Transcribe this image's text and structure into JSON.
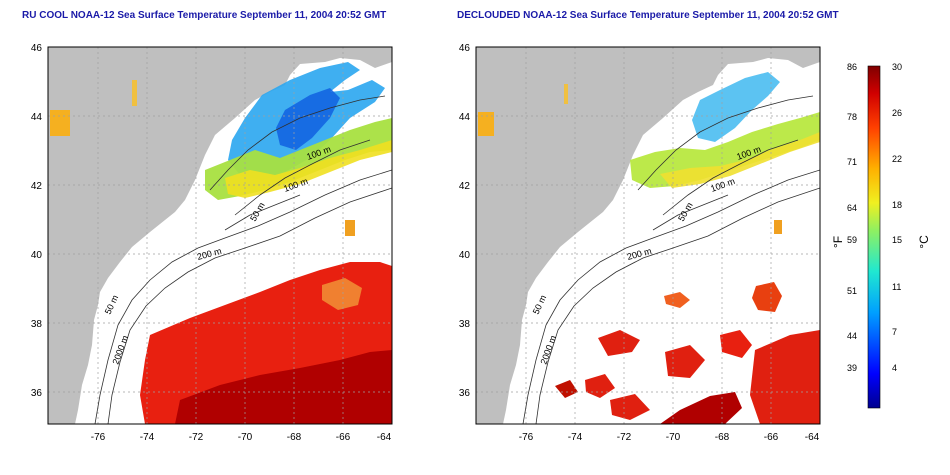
{
  "panels": [
    {
      "title": "RU COOL NOAA-12 Sea Surface Temperature September 11, 2004 20:52 GMT",
      "contour_labels": [
        "100 m",
        "100 m",
        "50 m",
        "200 m",
        "50 m",
        "2000 m"
      ]
    },
    {
      "title": "DECLOUDED NOAA-12 Sea Surface Temperature September 11, 2004 20:52 GMT",
      "contour_labels": [
        "100 m",
        "100 m",
        "50 m",
        "200 m",
        "50 m",
        "2000 m"
      ]
    }
  ],
  "axes": {
    "lon_ticks": [
      "-76",
      "-74",
      "-72",
      "-70",
      "-68",
      "-66",
      "-64"
    ],
    "lat_ticks": [
      "46",
      "44",
      "42",
      "40",
      "38",
      "36"
    ],
    "lon_range": [
      -77.0,
      -63.0
    ],
    "lat_range": [
      35.0,
      46.0
    ]
  },
  "colorbar": {
    "fahrenheit_ticks": [
      "86",
      "78",
      "71",
      "64",
      "59",
      "51",
      "44",
      "39"
    ],
    "celsius_ticks": [
      "30",
      "26",
      "22",
      "18",
      "15",
      "11",
      "7",
      "4"
    ],
    "fahrenheit_label": "°F",
    "celsius_label": "°C"
  },
  "colors": {
    "land": "#bfbfbf",
    "water": "#ffffff",
    "title": "#1a1aa8",
    "grid": "#a0a0a0"
  }
}
